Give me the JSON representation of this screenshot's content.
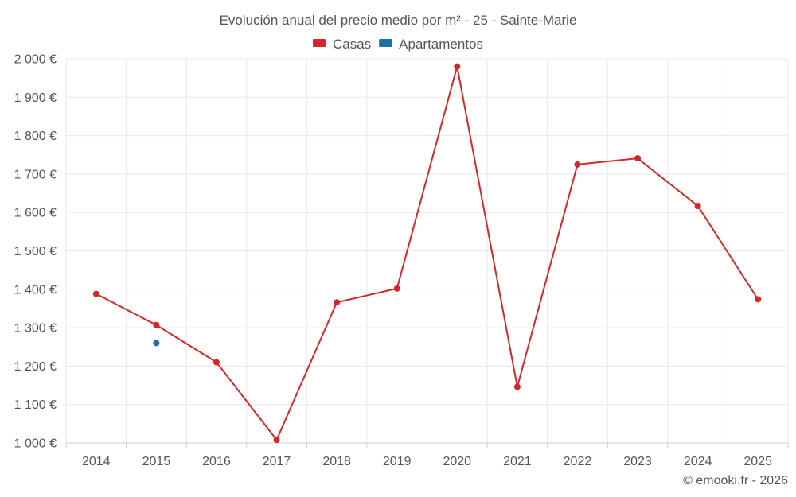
{
  "chart_data": {
    "type": "line",
    "title": "Evolución anual del precio medio por m² - 25 - Sainte-Marie",
    "categories": [
      "2014",
      "2015",
      "2016",
      "2017",
      "2018",
      "2019",
      "2020",
      "2021",
      "2022",
      "2023",
      "2024",
      "2025"
    ],
    "series": [
      {
        "name": "Casas",
        "color": "#d62728",
        "values": [
          1388,
          1307,
          1210,
          1008,
          1366,
          1402,
          1980,
          1146,
          1725,
          1741,
          1617,
          1374
        ]
      },
      {
        "name": "Apartamentos",
        "color": "#1f6fa8",
        "values": [
          null,
          1260,
          null,
          null,
          null,
          null,
          null,
          null,
          null,
          null,
          null,
          null
        ]
      }
    ],
    "ylim": [
      1000,
      2000
    ],
    "yticks": [
      1000,
      1100,
      1200,
      1300,
      1400,
      1500,
      1600,
      1700,
      1800,
      1900,
      2000
    ],
    "ytick_labels": [
      "1 000 €",
      "1 100 €",
      "1 200 €",
      "1 300 €",
      "1 400 €",
      "1 500 €",
      "1 600 €",
      "1 700 €",
      "1 800 €",
      "1 900 €",
      "2 000 €"
    ],
    "legend_position": "top-center",
    "grid": true
  },
  "footer": "© emooki.fr - 2026"
}
